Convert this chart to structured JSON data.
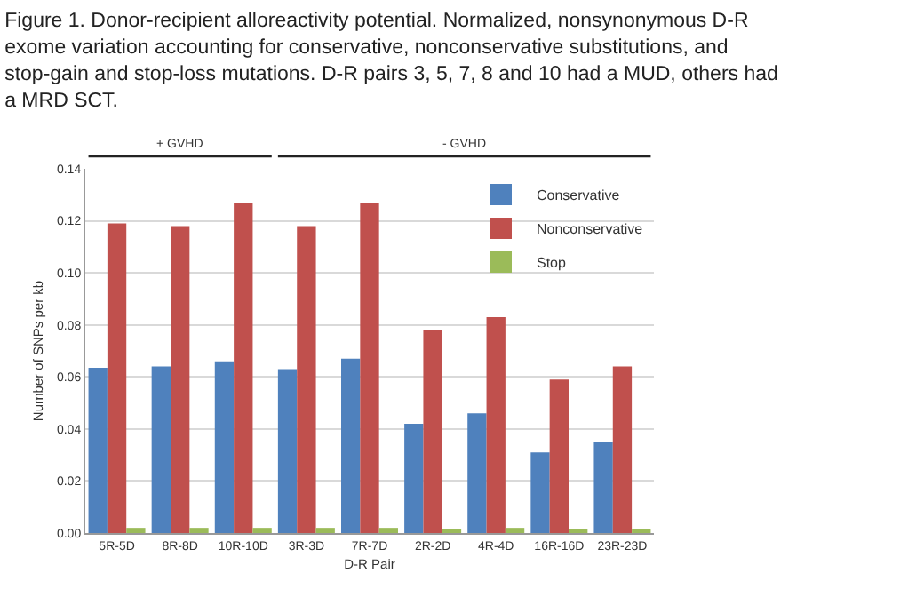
{
  "chart_data": {
    "type": "bar",
    "title": "Figure 1. Donor-recipient alloreactivity potential. Normalized, nonsynonymous D-R exome variation accounting for conservative, nonconservative substitutions, and stop-gain and stop-loss mutations. D-R pairs 3, 5, 7, 8 and 10 had a MUD, others had a MRD SCT.",
    "xlabel": "D-R Pair",
    "ylabel": "Number of SNPs per kb",
    "categories": [
      "5R-5D",
      "8R-8D",
      "10R-10D",
      "3R-3D",
      "7R-7D",
      "2R-2D",
      "4R-4D",
      "16R-16D",
      "23R-23D"
    ],
    "series": [
      {
        "name": "Conservative",
        "color": "#4f81bd",
        "values": [
          0.0635,
          0.064,
          0.066,
          0.063,
          0.067,
          0.042,
          0.046,
          0.031,
          0.035
        ]
      },
      {
        "name": "Nonconservative",
        "color": "#c0504d",
        "values": [
          0.119,
          0.118,
          0.127,
          0.118,
          0.127,
          0.078,
          0.083,
          0.059,
          0.064
        ]
      },
      {
        "name": "Stop",
        "color": "#9bbb59",
        "values": [
          0.002,
          0.002,
          0.002,
          0.002,
          0.002,
          0.001,
          0.002,
          0.001,
          0.001
        ]
      }
    ],
    "ylim": [
      0,
      0.14
    ],
    "yticks": [
      {
        "value": 0,
        "label": "0.00"
      },
      {
        "value": 0.02,
        "label": "0.02"
      },
      {
        "value": 0.04,
        "label": "0.04"
      },
      {
        "value": 0.06,
        "label": "0.06"
      },
      {
        "value": 0.08,
        "label": "0.08"
      },
      {
        "value": 0.1,
        "label": "0.10"
      },
      {
        "value": 0.12,
        "label": "0.12"
      },
      {
        "value": 0.14,
        "label": "0.14"
      }
    ],
    "grid": "y",
    "legend": "top right",
    "annotations": [
      "+ GVHD",
      "- GVHD"
    ]
  }
}
